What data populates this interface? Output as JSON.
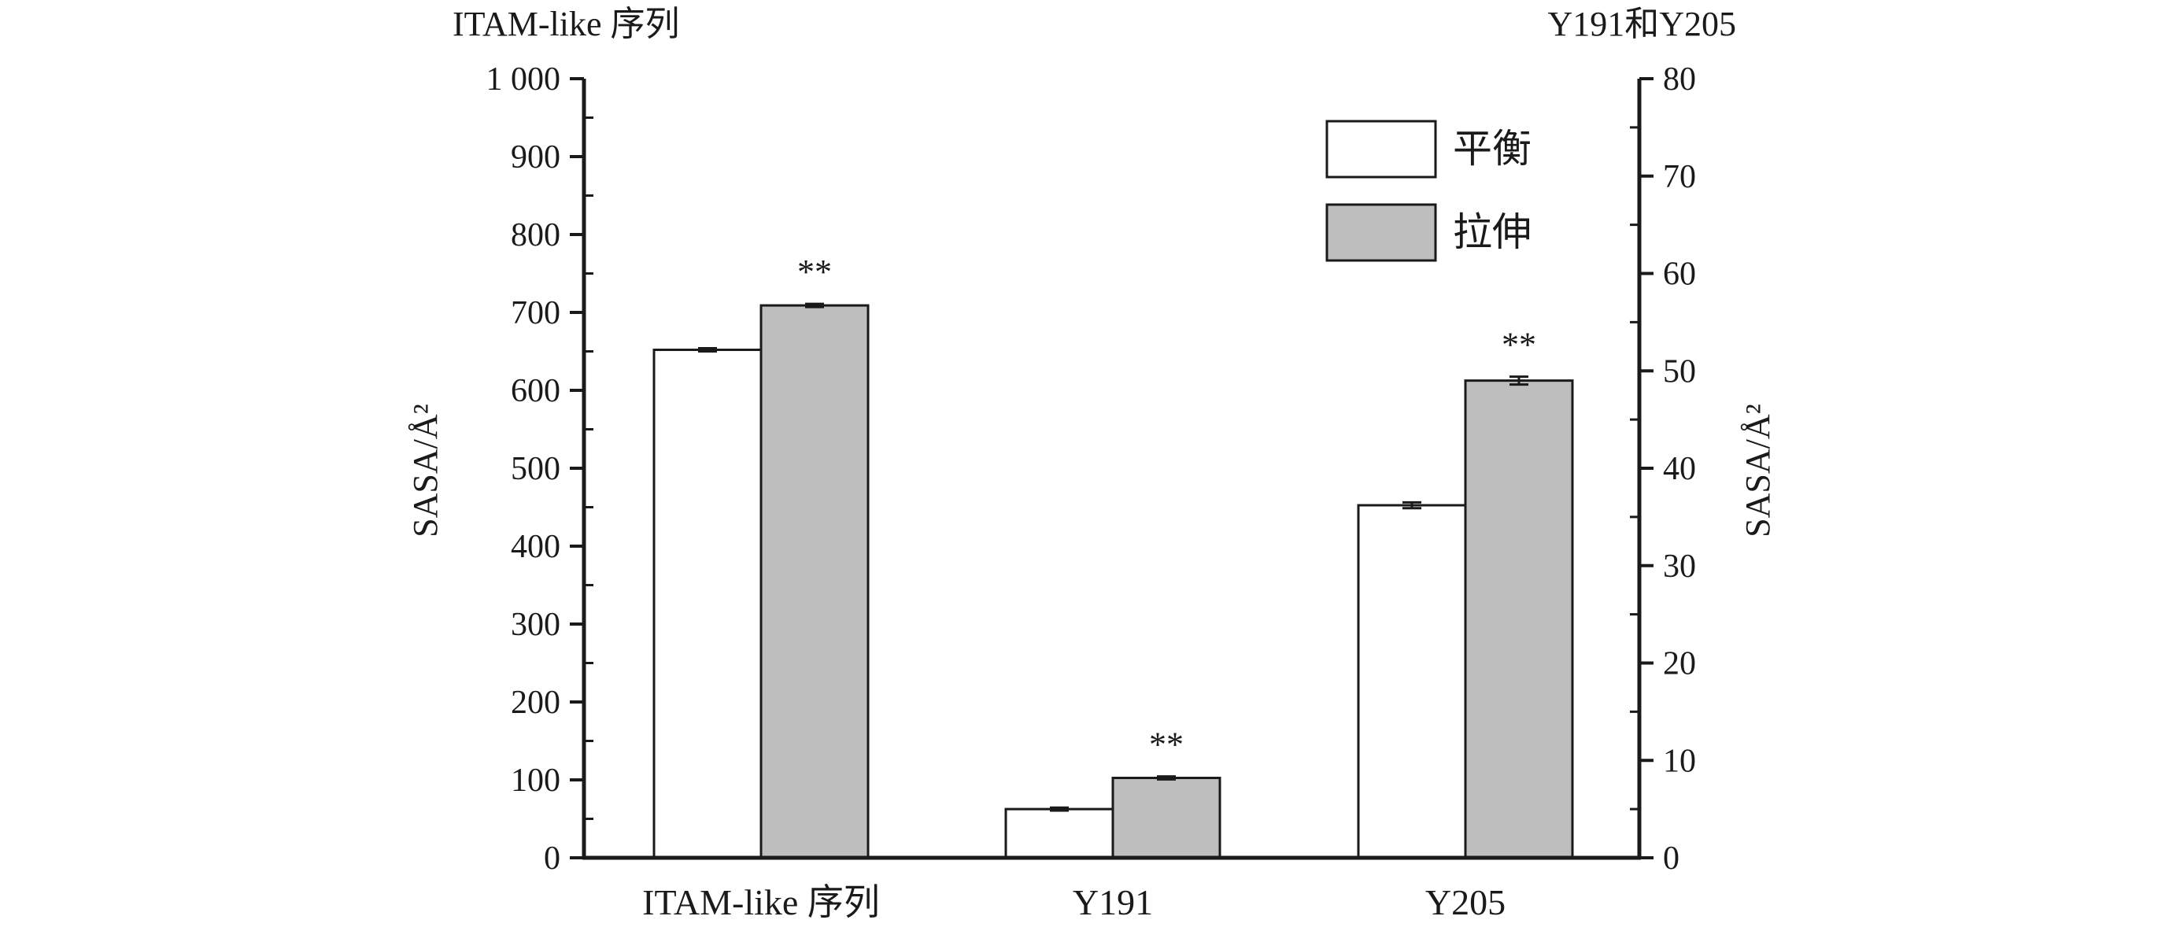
{
  "chart_data": {
    "type": "bar",
    "categories": [
      "ITAM-like 序列",
      "Y191",
      "Y205"
    ],
    "series": [
      {
        "name": "平衡",
        "color": "#ffffff",
        "values": [
          652,
          5.0,
          36.2
        ],
        "errors": [
          2,
          0.15,
          0.3
        ]
      },
      {
        "name": "拉伸",
        "color": "#bebebe",
        "values": [
          709,
          8.2,
          49.0
        ],
        "errors": [
          2,
          0.15,
          0.4
        ]
      }
    ],
    "axis_map": [
      "left",
      "right",
      "right"
    ],
    "left_axis": {
      "title": "ITAM-like 序列",
      "ylabel": "SASA/Å²",
      "ylim": [
        0,
        1000
      ],
      "ticks": [
        0,
        100,
        200,
        300,
        400,
        500,
        600,
        700,
        800,
        900,
        1000
      ],
      "tick_labels": [
        "0",
        "100",
        "200",
        "300",
        "400",
        "500",
        "600",
        "700",
        "800",
        "900",
        "1 000"
      ]
    },
    "right_axis": {
      "title": "Y191和Y205",
      "ylabel": "SASA/Å²",
      "ylim": [
        0,
        80
      ],
      "ticks": [
        0,
        10,
        20,
        30,
        40,
        50,
        60,
        70,
        80
      ],
      "tick_labels": [
        "0",
        "10",
        "20",
        "30",
        "40",
        "50",
        "60",
        "70",
        "80"
      ]
    },
    "significance": [
      "**",
      "**",
      "**"
    ],
    "legend": {
      "position": "top-right",
      "items": [
        "平衡",
        "拉伸"
      ]
    },
    "grid": false
  }
}
